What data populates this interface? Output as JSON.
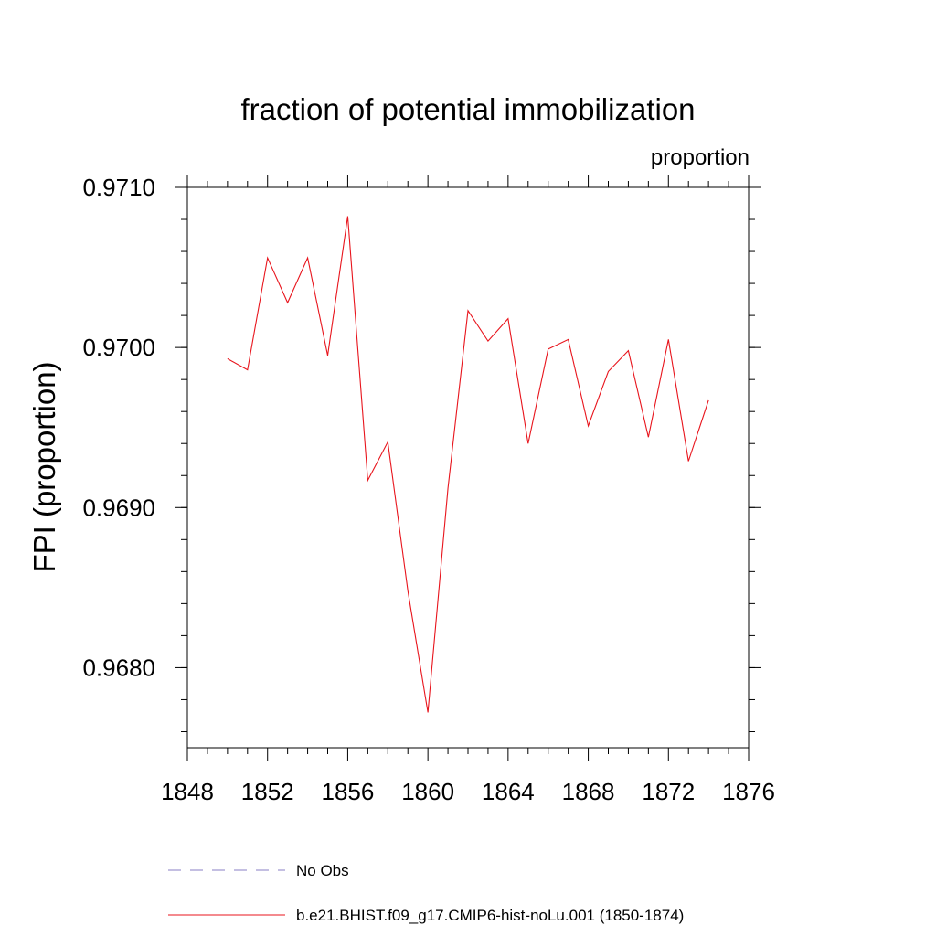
{
  "chart_data": {
    "type": "line",
    "title": "fraction of potential immobilization",
    "units_label": "proportion",
    "ylabel": "FPI  (proportion)",
    "xlabel": "",
    "xlim": [
      1848,
      1876
    ],
    "ylim": [
      0.9675,
      0.971
    ],
    "xticks": [
      1848,
      1852,
      1856,
      1860,
      1864,
      1868,
      1872,
      1876
    ],
    "xtick_labels": [
      "1848",
      "1852",
      "1856",
      "1860",
      "1864",
      "1868",
      "1872",
      "1876"
    ],
    "yticks": [
      0.968,
      0.969,
      0.97,
      0.971
    ],
    "ytick_labels": [
      "0.9680",
      "0.9690",
      "0.9700",
      "0.9710"
    ],
    "grid": false,
    "legend_position": "bottom",
    "series": [
      {
        "name": "b.e21.BHIST.f09_g17.CMIP6-hist-noLu.001 (1850-1874)",
        "color": "#e8141c",
        "style": "solid",
        "x": [
          1850,
          1851,
          1852,
          1853,
          1854,
          1855,
          1856,
          1857,
          1858,
          1859,
          1860,
          1861,
          1862,
          1863,
          1864,
          1865,
          1866,
          1867,
          1868,
          1869,
          1870,
          1871,
          1872,
          1873,
          1874
        ],
        "y": [
          0.96993,
          0.96986,
          0.97056,
          0.97028,
          0.97056,
          0.96995,
          0.97082,
          0.96917,
          0.96941,
          0.96848,
          0.96772,
          0.96912,
          0.97023,
          0.97004,
          0.97018,
          0.9694,
          0.96999,
          0.97005,
          0.96951,
          0.96985,
          0.96998,
          0.96944,
          0.97005,
          0.96929,
          0.96967
        ]
      },
      {
        "name": "No Obs",
        "color": "#8a7fc4",
        "style": "dashed",
        "x": [],
        "y": []
      }
    ]
  }
}
